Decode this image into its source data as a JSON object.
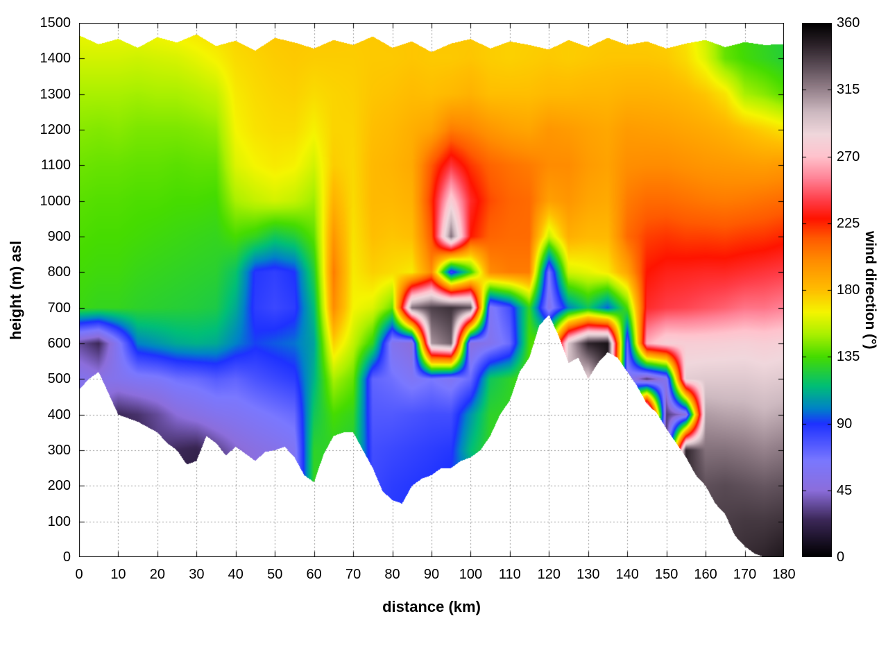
{
  "chart_data": {
    "type": "heatmap",
    "title": "",
    "xlabel": "distance (km)",
    "ylabel": "height (m) asl",
    "cblabel": "wind direction (°)",
    "x_range": [
      0,
      180
    ],
    "y_range": [
      0,
      1500
    ],
    "cb_range": [
      0,
      360
    ],
    "x_ticks": [
      0,
      10,
      20,
      30,
      40,
      50,
      60,
      70,
      80,
      90,
      100,
      110,
      120,
      130,
      140,
      150,
      160,
      170,
      180
    ],
    "y_ticks": [
      0,
      100,
      200,
      300,
      400,
      500,
      600,
      700,
      800,
      900,
      1000,
      1100,
      1200,
      1300,
      1400,
      1500
    ],
    "cb_ticks": [
      0,
      45,
      90,
      135,
      180,
      225,
      270,
      315,
      360
    ],
    "grid_on": true,
    "legend_position": "right-colorbar",
    "grid": {
      "x_step_km": 5,
      "z_step_m": 100
    },
    "wind_direction_grid": [
      [
        55,
        55,
        55,
        55,
        55,
        55,
        35,
        132,
        134,
        136,
        138,
        141,
        145,
        150,
        158,
        165
      ],
      [
        45,
        45,
        45,
        45,
        45,
        50,
        25,
        130,
        133,
        135,
        137,
        140,
        144,
        150,
        158,
        166
      ],
      [
        25,
        25,
        25,
        25,
        25,
        55,
        60,
        130,
        133,
        135,
        137,
        140,
        145,
        150,
        158,
        166
      ],
      [
        22,
        22,
        22,
        22,
        28,
        60,
        100,
        128,
        131,
        134,
        136,
        139,
        143,
        149,
        157,
        166
      ],
      [
        30,
        30,
        30,
        30,
        35,
        62,
        105,
        127,
        130,
        133,
        136,
        139,
        143,
        150,
        158,
        168
      ],
      [
        20,
        20,
        20,
        25,
        45,
        68,
        110,
        126,
        129,
        132,
        135,
        138,
        143,
        150,
        159,
        170
      ],
      [
        18,
        18,
        18,
        22,
        50,
        70,
        112,
        125,
        128,
        131,
        135,
        139,
        144,
        152,
        162,
        172
      ],
      [
        25,
        25,
        25,
        32,
        55,
        75,
        110,
        123,
        127,
        130,
        134,
        139,
        146,
        155,
        166,
        174
      ],
      [
        35,
        35,
        35,
        42,
        58,
        72,
        100,
        110,
        118,
        135,
        150,
        160,
        165,
        168,
        172,
        175
      ],
      [
        45,
        45,
        45,
        48,
        62,
        78,
        92,
        86,
        88,
        130,
        155,
        165,
        170,
        172,
        174,
        177
      ],
      [
        50,
        50,
        50,
        52,
        66,
        82,
        95,
        82,
        85,
        120,
        158,
        168,
        172,
        174,
        176,
        178
      ],
      [
        55,
        55,
        55,
        58,
        70,
        86,
        98,
        86,
        90,
        125,
        155,
        166,
        172,
        175,
        177,
        178
      ],
      [
        130,
        130,
        130,
        128,
        120,
        112,
        108,
        115,
        125,
        138,
        148,
        158,
        166,
        172,
        176,
        178
      ],
      [
        130,
        130,
        130,
        128,
        135,
        150,
        175,
        200,
        205,
        196,
        185,
        176,
        174,
        174,
        176,
        178
      ],
      [
        120,
        120,
        120,
        125,
        130,
        140,
        155,
        165,
        168,
        170,
        172,
        173,
        174,
        175,
        176,
        177
      ],
      [
        82,
        82,
        82,
        80,
        76,
        72,
        130,
        160,
        175,
        180,
        182,
        182,
        180,
        178,
        177,
        177
      ],
      [
        88,
        88,
        86,
        82,
        76,
        68,
        55,
        140,
        172,
        178,
        182,
        184,
        182,
        179,
        177,
        178
      ],
      [
        90,
        90,
        88,
        84,
        78,
        60,
        45,
        320,
        168,
        180,
        185,
        188,
        186,
        181,
        178,
        178
      ],
      [
        92,
        92,
        90,
        86,
        80,
        65,
        310,
        335,
        200,
        215,
        222,
        215,
        190,
        180,
        177,
        178
      ],
      [
        95,
        95,
        93,
        88,
        80,
        58,
        325,
        340,
        80,
        320,
        278,
        238,
        205,
        182,
        177,
        178
      ],
      [
        100,
        100,
        100,
        115,
        105,
        70,
        48,
        330,
        130,
        228,
        235,
        222,
        202,
        185,
        178,
        177
      ],
      [
        120,
        120,
        120,
        130,
        128,
        120,
        55,
        60,
        200,
        212,
        218,
        212,
        196,
        180,
        176,
        176
      ],
      [
        130,
        130,
        130,
        130,
        130,
        128,
        70,
        80,
        205,
        210,
        212,
        208,
        192,
        180,
        175,
        175
      ],
      [
        140,
        140,
        140,
        140,
        140,
        138,
        135,
        130,
        205,
        210,
        210,
        205,
        190,
        180,
        176,
        175
      ],
      [
        150,
        150,
        150,
        150,
        150,
        150,
        148,
        55,
        65,
        155,
        192,
        200,
        196,
        182,
        177,
        176
      ],
      [
        150,
        150,
        150,
        150,
        150,
        300,
        295,
        100,
        158,
        186,
        196,
        200,
        194,
        182,
        176,
        176
      ],
      [
        150,
        150,
        150,
        150,
        150,
        290,
        345,
        120,
        162,
        182,
        190,
        194,
        191,
        183,
        177,
        176
      ],
      [
        150,
        150,
        150,
        150,
        150,
        340,
        352,
        95,
        168,
        182,
        188,
        191,
        189,
        183,
        178,
        176
      ],
      [
        150,
        150,
        150,
        150,
        150,
        60,
        70,
        135,
        190,
        210,
        205,
        199,
        194,
        185,
        178,
        176
      ],
      [
        150,
        150,
        150,
        150,
        355,
        30,
        265,
        235,
        228,
        220,
        210,
        200,
        193,
        185,
        178,
        175
      ],
      [
        30,
        30,
        30,
        30,
        30,
        55,
        280,
        240,
        232,
        222,
        210,
        200,
        192,
        184,
        177,
        174
      ],
      [
        340,
        340,
        340,
        345,
        48,
        290,
        278,
        242,
        233,
        220,
        208,
        198,
        190,
        182,
        172,
        168
      ],
      [
        335,
        335,
        330,
        320,
        308,
        292,
        278,
        245,
        234,
        220,
        206,
        196,
        188,
        178,
        160,
        155
      ],
      [
        338,
        336,
        332,
        320,
        306,
        292,
        279,
        248,
        234,
        219,
        205,
        195,
        185,
        170,
        140,
        138
      ],
      [
        342,
        338,
        330,
        318,
        305,
        292,
        280,
        252,
        236,
        221,
        206,
        194,
        180,
        150,
        134,
        132
      ],
      [
        345,
        338,
        328,
        315,
        302,
        290,
        278,
        252,
        238,
        222,
        208,
        193,
        175,
        145,
        130,
        128
      ],
      [
        350,
        340,
        330,
        318,
        305,
        292,
        280,
        255,
        240,
        225,
        210,
        195,
        170,
        138,
        126,
        124
      ]
    ],
    "terrain_profile": {
      "step_km": 2.5,
      "heights_m": [
        470,
        500,
        520,
        460,
        400,
        390,
        380,
        365,
        350,
        320,
        300,
        260,
        270,
        340,
        320,
        285,
        310,
        290,
        270,
        295,
        300,
        310,
        280,
        230,
        210,
        290,
        340,
        350,
        350,
        300,
        250,
        185,
        160,
        150,
        200,
        220,
        230,
        250,
        250,
        270,
        280,
        300,
        340,
        400,
        440,
        520,
        560,
        650,
        680,
        620,
        545,
        560,
        500,
        545,
        575,
        560,
        520,
        480,
        430,
        405,
        360,
        320,
        280,
        230,
        200,
        150,
        120,
        60,
        30,
        10,
        0,
        0,
        0
      ]
    },
    "top_boundary": {
      "step_km": 5,
      "heights_m": [
        1465,
        1440,
        1455,
        1430,
        1460,
        1445,
        1468,
        1435,
        1450,
        1422,
        1458,
        1445,
        1428,
        1452,
        1438,
        1462,
        1430,
        1448,
        1418,
        1442,
        1455,
        1428,
        1448,
        1438,
        1425,
        1452,
        1432,
        1458,
        1438,
        1448,
        1428,
        1442,
        1452,
        1432,
        1446,
        1438,
        1440
      ]
    },
    "palette": [
      [
        0,
        "#000000"
      ],
      [
        25,
        "#3c2858"
      ],
      [
        45,
        "#8c6edc"
      ],
      [
        65,
        "#7a78ff"
      ],
      [
        90,
        "#1e32ff"
      ],
      [
        100,
        "#0082c8"
      ],
      [
        115,
        "#00be78"
      ],
      [
        135,
        "#46dc00"
      ],
      [
        150,
        "#aaf000"
      ],
      [
        165,
        "#f5f500"
      ],
      [
        180,
        "#ffbe00"
      ],
      [
        200,
        "#ff8c00"
      ],
      [
        215,
        "#ff5a00"
      ],
      [
        228,
        "#ff1400"
      ],
      [
        240,
        "#ff3c46"
      ],
      [
        255,
        "#ff8296"
      ],
      [
        270,
        "#ffc3cd"
      ],
      [
        285,
        "#f0d7dc"
      ],
      [
        300,
        "#cdb9c0"
      ],
      [
        315,
        "#96828c"
      ],
      [
        330,
        "#5f505a"
      ],
      [
        345,
        "#2d232a"
      ],
      [
        360,
        "#000000"
      ]
    ],
    "colors": {
      "grid_dots": "#999999",
      "border": "#000000",
      "background": "#ffffff"
    }
  }
}
